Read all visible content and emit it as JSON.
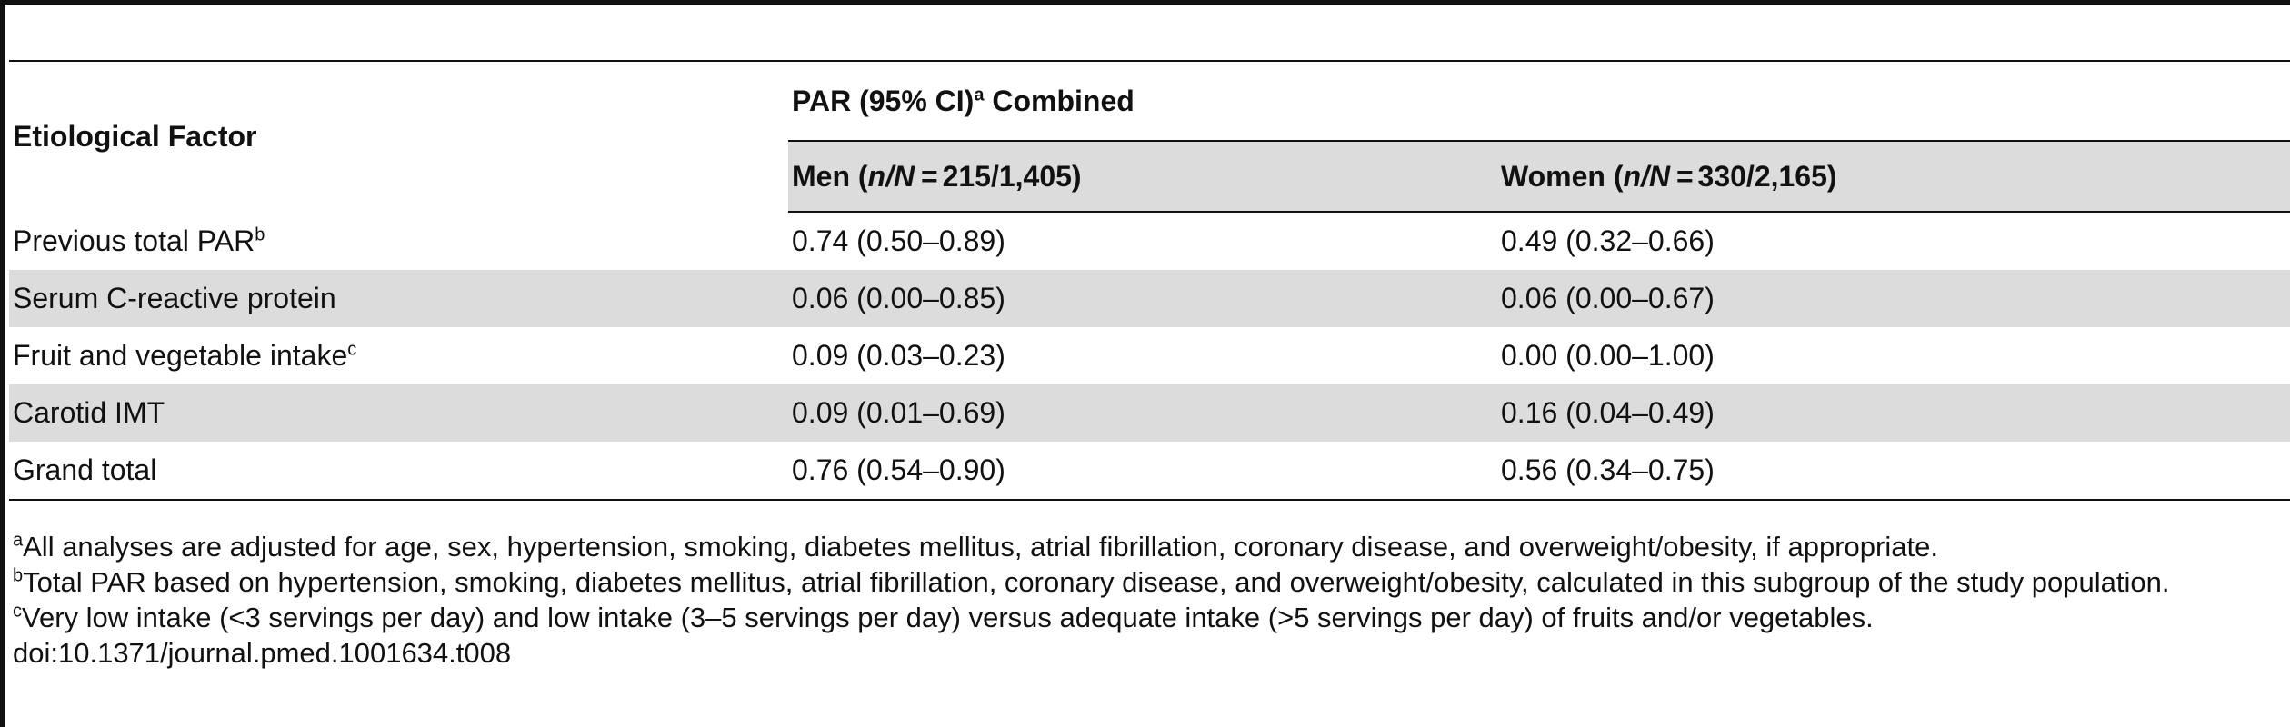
{
  "table": {
    "header": {
      "factor_col": "Etiological Factor",
      "group_label": "PAR (95% CI)",
      "group_sup": "a",
      "group_suffix": " Combined",
      "men_label": "Men (",
      "men_n": "n/N",
      "men_value": "215/1,405)",
      "women_label": "Women (",
      "women_n": "n/N",
      "women_value": "330/2,165)",
      "eq": " = "
    },
    "rows": [
      {
        "factor": "Previous total PAR",
        "sup": "b",
        "men": "0.74 (0.50–0.89)",
        "women": "0.49 (0.32–0.66)"
      },
      {
        "factor": "Serum C-reactive protein",
        "sup": "",
        "men": "0.06 (0.00–0.85)",
        "women": "0.06 (0.00–0.67)"
      },
      {
        "factor": "Fruit and vegetable intake",
        "sup": "c",
        "men": "0.09 (0.03–0.23)",
        "women": "0.00 (0.00–1.00)"
      },
      {
        "factor": "Carotid IMT",
        "sup": "",
        "men": "0.09 (0.01–0.69)",
        "women": "0.16 (0.04–0.49)"
      },
      {
        "factor": "Grand total",
        "sup": "",
        "men": "0.76 (0.54–0.90)",
        "women": "0.56 (0.34–0.75)"
      }
    ]
  },
  "footnotes": [
    {
      "mark": "a",
      "text": "All analyses are adjusted for age, sex, hypertension, smoking, diabetes mellitus, atrial fibrillation, coronary disease, and overweight/obesity, if appropriate."
    },
    {
      "mark": "b",
      "text": "Total PAR based on hypertension, smoking, diabetes mellitus, atrial fibrillation, coronary disease, and overweight/obesity, calculated in this subgroup of the study population."
    },
    {
      "mark": "c",
      "text": "Very low intake (<3 servings per day) and low intake (3–5 servings per day) versus adequate intake (>5 servings per day) of fruits and/or vegetables."
    }
  ],
  "doi": "doi:10.1371/journal.pmed.1001634.t008"
}
